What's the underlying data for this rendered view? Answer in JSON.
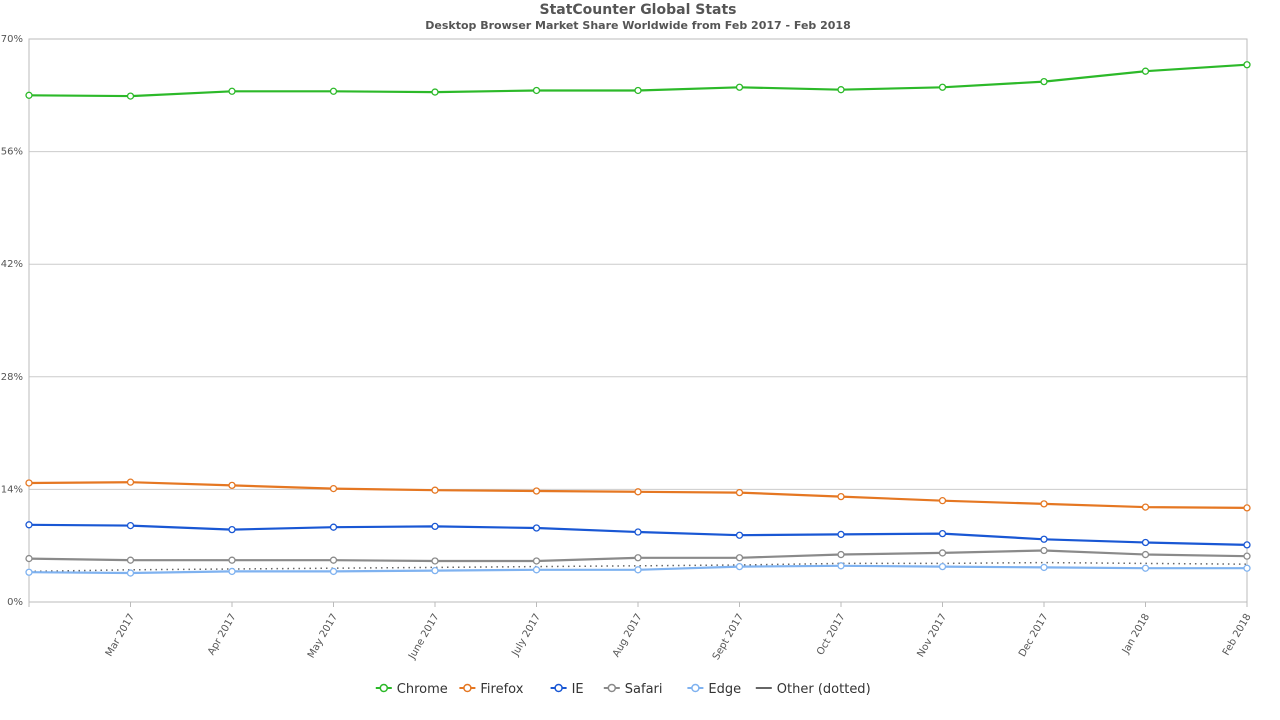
{
  "chart_data": {
    "type": "line",
    "title": "StatCounter Global Stats",
    "subtitle": "Desktop Browser Market Share Worldwide from Feb 2017 - Feb 2018",
    "x_labels": [
      "Feb 2017",
      "Mar 2017",
      "Apr 2017",
      "May 2017",
      "June 2017",
      "July 2017",
      "Aug 2017",
      "Sept 2017",
      "Oct 2017",
      "Nov 2017",
      "Dec 2017",
      "Jan 2018",
      "Feb 2018"
    ],
    "y_ticks": [
      0,
      14,
      28,
      42,
      56,
      70
    ],
    "y_tick_labels": [
      "0%",
      "14%",
      "28%",
      "42%",
      "56%",
      "70%"
    ],
    "ylim": [
      0,
      70
    ],
    "grid": true,
    "legend_position": "bottom",
    "series": [
      {
        "name": "Chrome",
        "color": "#2cb929",
        "style": "solid",
        "markers": true,
        "values": [
          63.0,
          62.9,
          63.5,
          63.5,
          63.4,
          63.6,
          63.6,
          64.0,
          63.7,
          64.0,
          64.7,
          66.0,
          66.8
        ]
      },
      {
        "name": "Firefox",
        "color": "#e57722",
        "style": "solid",
        "markers": true,
        "values": [
          14.8,
          14.9,
          14.5,
          14.1,
          13.9,
          13.8,
          13.7,
          13.6,
          13.1,
          12.6,
          12.2,
          11.8,
          11.7
        ]
      },
      {
        "name": "IE",
        "color": "#1957d4",
        "style": "solid",
        "markers": true,
        "values": [
          9.6,
          9.5,
          9.0,
          9.3,
          9.4,
          9.2,
          8.7,
          8.3,
          8.4,
          8.5,
          7.8,
          7.4,
          7.1
        ]
      },
      {
        "name": "Safari",
        "color": "#8a8a8a",
        "style": "solid",
        "markers": true,
        "values": [
          5.4,
          5.2,
          5.2,
          5.2,
          5.1,
          5.1,
          5.5,
          5.5,
          5.9,
          6.1,
          6.4,
          5.9,
          5.7
        ]
      },
      {
        "name": "Edge",
        "color": "#7fb2f0",
        "style": "solid",
        "markers": true,
        "values": [
          3.7,
          3.6,
          3.8,
          3.8,
          3.9,
          4.0,
          4.0,
          4.4,
          4.5,
          4.4,
          4.3,
          4.2,
          4.2
        ]
      },
      {
        "name": "Other (dotted)",
        "color": "#666666",
        "style": "dotted",
        "markers": false,
        "values": [
          3.8,
          4.0,
          4.1,
          4.2,
          4.3,
          4.4,
          4.5,
          4.6,
          4.8,
          4.8,
          4.9,
          4.8,
          4.7
        ]
      }
    ]
  }
}
